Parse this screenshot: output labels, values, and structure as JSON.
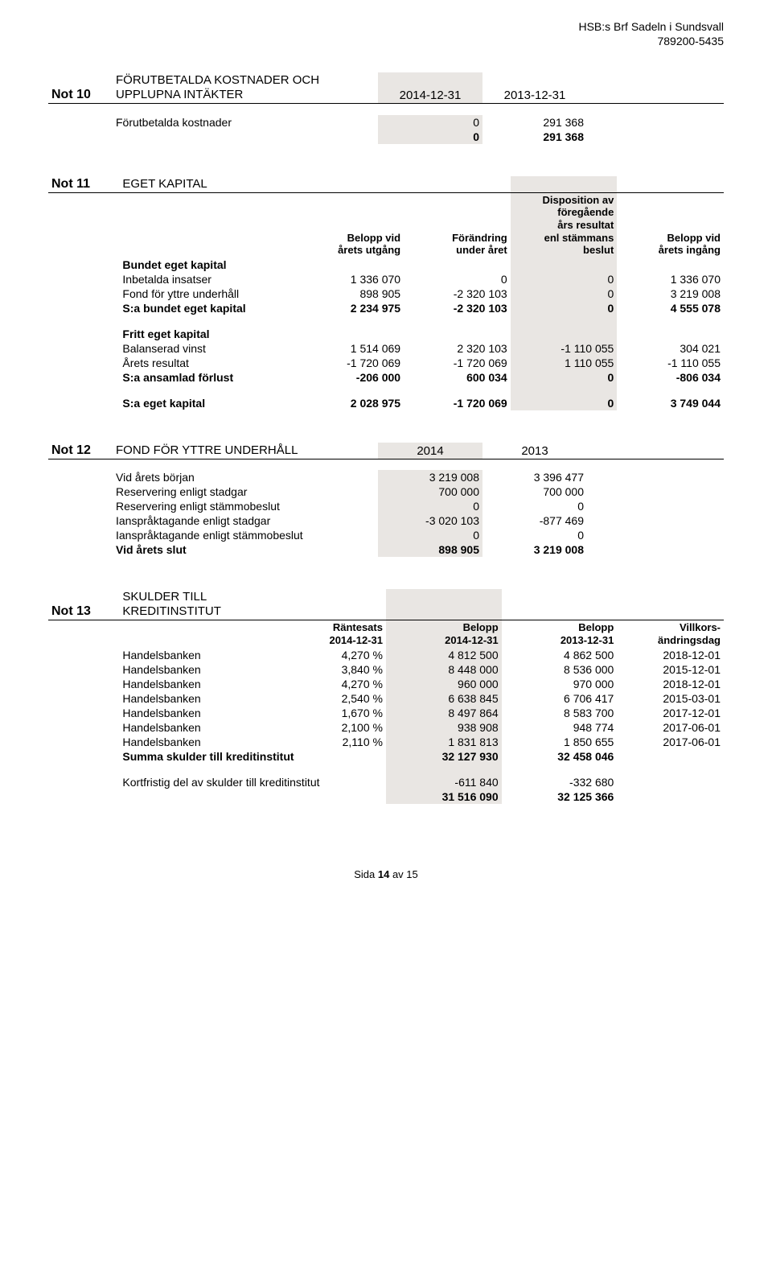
{
  "header": {
    "org_name": "HSB:s Brf Sadeln i Sundsvall",
    "org_number": "789200-5435"
  },
  "note10": {
    "num": "Not 10",
    "title_line1": "FÖRUTBETALDA KOSTNADER OCH",
    "title_line2": "UPPLUPNA INTÄKTER",
    "col1": "2014-12-31",
    "col2": "2013-12-31",
    "rows": [
      {
        "label": "Förutbetalda kostnader",
        "v1": "0",
        "v2": "291 368"
      }
    ],
    "total": {
      "v1": "0",
      "v2": "291 368"
    }
  },
  "note11": {
    "num": "Not 11",
    "title": "EGET KAPITAL",
    "headers": {
      "c1a": "Belopp vid",
      "c1b": "årets utgång",
      "c2a": "Förändring",
      "c2b": "under året",
      "c3a": "Disposition av",
      "c3b": "föregående",
      "c3c": "års resultat",
      "c3d": "enl stämmans",
      "c3e": "beslut",
      "c4a": "Belopp vid",
      "c4b": "årets ingång"
    },
    "bundet_label": "Bundet eget kapital",
    "bundet_rows": [
      {
        "label": "Inbetalda insatser",
        "v1": "1 336 070",
        "v2": "0",
        "v3": "0",
        "v4": "1 336 070"
      },
      {
        "label": "Fond för yttre underhåll",
        "v1": "898 905",
        "v2": "-2 320 103",
        "v3": "0",
        "v4": "3 219 008"
      }
    ],
    "bundet_sum": {
      "label": "S:a bundet eget kapital",
      "v1": "2 234 975",
      "v2": "-2 320 103",
      "v3": "0",
      "v4": "4 555 078"
    },
    "fritt_label": "Fritt eget kapital",
    "fritt_rows": [
      {
        "label": "Balanserad vinst",
        "v1": "1 514 069",
        "v2": "2 320 103",
        "v3": "-1 110 055",
        "v4": "304 021"
      },
      {
        "label": "Årets resultat",
        "v1": "-1 720 069",
        "v2": "-1 720 069",
        "v3": "1 110 055",
        "v4": "-1 110 055"
      }
    ],
    "fritt_sum": {
      "label": "S:a ansamlad förlust",
      "v1": "-206 000",
      "v2": "600 034",
      "v3": "0",
      "v4": "-806 034"
    },
    "total": {
      "label": "S:a eget kapital",
      "v1": "2 028 975",
      "v2": "-1 720 069",
      "v3": "0",
      "v4": "3 749 044"
    }
  },
  "note12": {
    "num": "Not 12",
    "title": "FOND FÖR YTTRE UNDERHÅLL",
    "col1": "2014",
    "col2": "2013",
    "rows": [
      {
        "label": "Vid årets början",
        "v1": "3 219 008",
        "v2": "3 396 477"
      },
      {
        "label": "Reservering enligt stadgar",
        "v1": "700 000",
        "v2": "700 000"
      },
      {
        "label": "Reservering enligt stämmobeslut",
        "v1": "0",
        "v2": "0"
      },
      {
        "label": "Ianspråktagande enligt stadgar",
        "v1": "-3 020 103",
        "v2": "-877 469"
      },
      {
        "label": "Ianspråktagande enligt stämmobeslut",
        "v1": "0",
        "v2": "0"
      }
    ],
    "total": {
      "label": "Vid årets slut",
      "v1": "898 905",
      "v2": "3 219 008"
    }
  },
  "note13": {
    "num": "Not 13",
    "title": "SKULDER TILL KREDITINSTITUT",
    "headers": {
      "c1a": "Räntesats",
      "c1b": "2014-12-31",
      "c2a": "Belopp",
      "c2b": "2014-12-31",
      "c3a": "Belopp",
      "c3b": "2013-12-31",
      "c4a": "Villkors-",
      "c4b": "ändringsdag"
    },
    "rows": [
      {
        "label": "Handelsbanken",
        "rate": "4,270 %",
        "v1": "4 812 500",
        "v2": "4 862 500",
        "date": "2018-12-01"
      },
      {
        "label": "Handelsbanken",
        "rate": "3,840 %",
        "v1": "8 448 000",
        "v2": "8 536 000",
        "date": "2015-12-01"
      },
      {
        "label": "Handelsbanken",
        "rate": "4,270 %",
        "v1": "960 000",
        "v2": "970 000",
        "date": "2018-12-01"
      },
      {
        "label": "Handelsbanken",
        "rate": "2,540 %",
        "v1": "6 638 845",
        "v2": "6 706 417",
        "date": "2015-03-01"
      },
      {
        "label": "Handelsbanken",
        "rate": "1,670 %",
        "v1": "8 497 864",
        "v2": "8 583 700",
        "date": "2017-12-01"
      },
      {
        "label": "Handelsbanken",
        "rate": "2,100 %",
        "v1": "938 908",
        "v2": "948 774",
        "date": "2017-06-01"
      },
      {
        "label": "Handelsbanken",
        "rate": "2,110 %",
        "v1": "1 831 813",
        "v2": "1 850 655",
        "date": "2017-06-01"
      }
    ],
    "sum": {
      "label": "Summa skulder till kreditinstitut",
      "v1": "32 127 930",
      "v2": "32 458 046"
    },
    "short": {
      "label": "Kortfristig del av skulder till kreditinstitut",
      "v1": "-611 840",
      "v2": "-332 680"
    },
    "net": {
      "v1": "31 516 090",
      "v2": "32 125 366"
    }
  },
  "footer": {
    "text": "Sida ",
    "page": "14",
    "of_text": " av ",
    "total": "15"
  }
}
